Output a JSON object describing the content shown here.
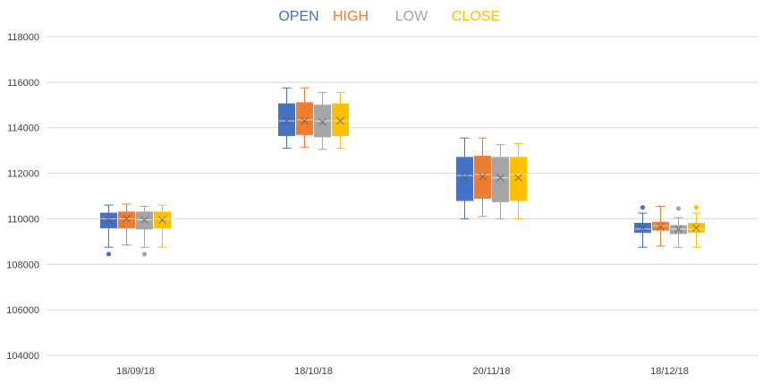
{
  "chart_data": {
    "type": "boxplot",
    "title": "",
    "xlabel": "",
    "ylabel": "",
    "ylim": [
      104000,
      118000
    ],
    "y_ticks": [
      104000,
      106000,
      108000,
      110000,
      112000,
      114000,
      116000,
      118000
    ],
    "grid": true,
    "legend_position": "top",
    "categories": [
      "18/09/18",
      "18/10/18",
      "20/11/18",
      "18/12/18"
    ],
    "series": [
      {
        "name": "OPEN",
        "color": "#4472C4",
        "boxes": [
          {
            "min": 108750,
            "q1": 109600,
            "median": 110000,
            "mean": 109950,
            "q3": 110250,
            "max": 110600,
            "outliers": [
              108450
            ]
          },
          {
            "min": 113100,
            "q1": 113650,
            "median": 114300,
            "mean": 114300,
            "q3": 115050,
            "max": 115750,
            "outliers": []
          },
          {
            "min": 110000,
            "q1": 110800,
            "median": 111900,
            "mean": 111800,
            "q3": 112700,
            "max": 113550,
            "outliers": []
          },
          {
            "min": 108750,
            "q1": 109400,
            "median": 109550,
            "mean": 109600,
            "q3": 109800,
            "max": 110250,
            "outliers": [
              110500
            ]
          }
        ]
      },
      {
        "name": "HIGH",
        "color": "#ED7D31",
        "boxes": [
          {
            "min": 108850,
            "q1": 109600,
            "median": 110000,
            "mean": 110000,
            "q3": 110300,
            "max": 110650,
            "outliers": []
          },
          {
            "min": 113150,
            "q1": 113700,
            "median": 114350,
            "mean": 114300,
            "q3": 115100,
            "max": 115750,
            "outliers": []
          },
          {
            "min": 110100,
            "q1": 110900,
            "median": 111950,
            "mean": 111850,
            "q3": 112750,
            "max": 113550,
            "outliers": []
          },
          {
            "min": 108800,
            "q1": 109500,
            "median": 109700,
            "mean": 109650,
            "q3": 109850,
            "max": 110550,
            "outliers": []
          }
        ]
      },
      {
        "name": "LOW",
        "color": "#A5A5A5",
        "boxes": [
          {
            "min": 108750,
            "q1": 109550,
            "median": 109950,
            "mean": 109950,
            "q3": 110300,
            "max": 110550,
            "outliers": [
              108450
            ]
          },
          {
            "min": 113050,
            "q1": 113600,
            "median": 114300,
            "mean": 114250,
            "q3": 115000,
            "max": 115550,
            "outliers": []
          },
          {
            "min": 110000,
            "q1": 110750,
            "median": 111800,
            "mean": 111800,
            "q3": 112700,
            "max": 113250,
            "outliers": []
          },
          {
            "min": 108750,
            "q1": 109350,
            "median": 109550,
            "mean": 109550,
            "q3": 109700,
            "max": 110050,
            "outliers": [
              110450
            ]
          }
        ]
      },
      {
        "name": "CLOSE",
        "color": "#FFC000",
        "boxes": [
          {
            "min": 108750,
            "q1": 109600,
            "median": 110000,
            "mean": 109950,
            "q3": 110300,
            "max": 110600,
            "outliers": []
          },
          {
            "min": 113100,
            "q1": 113650,
            "median": 114300,
            "mean": 114300,
            "q3": 115050,
            "max": 115550,
            "outliers": []
          },
          {
            "min": 110000,
            "q1": 110800,
            "median": 111950,
            "mean": 111800,
            "q3": 112700,
            "max": 113300,
            "outliers": []
          },
          {
            "min": 108750,
            "q1": 109400,
            "median": 109550,
            "mean": 109600,
            "q3": 109800,
            "max": 110250,
            "outliers": [
              110500
            ]
          }
        ]
      }
    ]
  }
}
